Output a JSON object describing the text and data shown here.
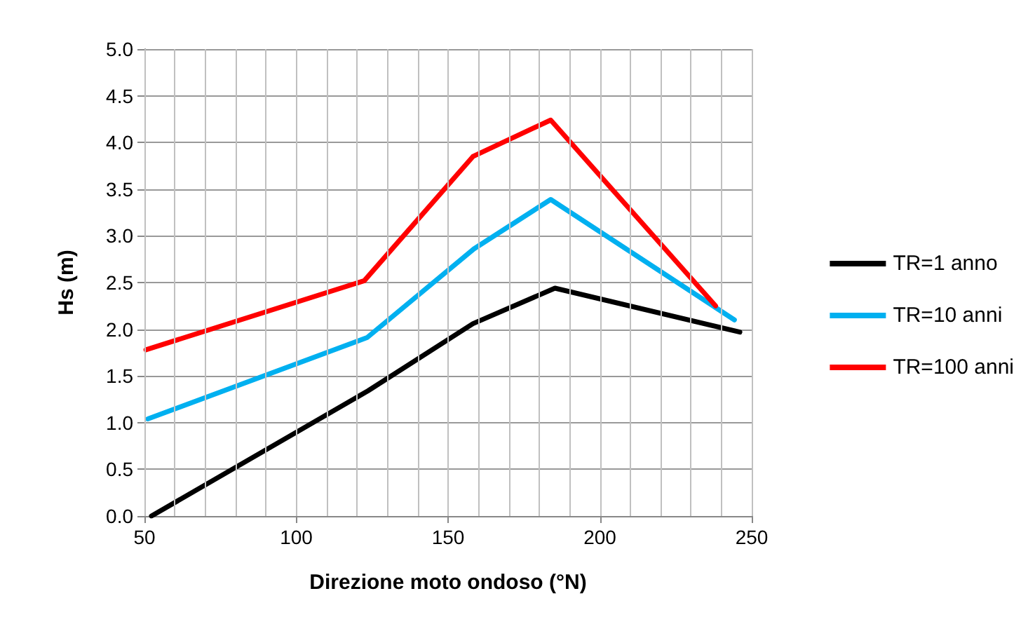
{
  "chart_data": {
    "type": "line",
    "xlabel": "Direzione moto ondoso (°N)",
    "ylabel": "Hs (m)",
    "xlim": [
      50,
      250
    ],
    "xticks": [
      50,
      100,
      150,
      200,
      250
    ],
    "ylim": [
      0,
      5
    ],
    "yticks": [
      {
        "value": 0,
        "label": "0.0"
      },
      {
        "value": 0.5,
        "label": "0.5"
      },
      {
        "value": 1,
        "label": "1.0"
      },
      {
        "value": 1.5,
        "label": "1.5"
      },
      {
        "value": 2,
        "label": "2.0"
      },
      {
        "value": 2.5,
        "label": "2.5"
      },
      {
        "value": 3,
        "label": "3.0"
      },
      {
        "value": 3.5,
        "label": "3.5"
      },
      {
        "value": 4,
        "label": "4.0"
      },
      {
        "value": 4.5,
        "label": "4.5"
      },
      {
        "value": 5,
        "label": "5.0"
      }
    ],
    "grid": true,
    "legend": "right",
    "marker": "none",
    "line_style": "solid",
    "series": [
      {
        "name": "TR=1 anno",
        "color": "#000000",
        "x": [
          52.3,
          123.6,
          158.2,
          185.2,
          246.1
        ],
        "values": [
          0.0,
          1.34,
          2.06,
          2.44,
          1.97
        ]
      },
      {
        "name": "TR=10 anni",
        "color": "#00b0f0",
        "x": [
          51.1,
          123.3,
          158.5,
          183.8,
          244.3
        ],
        "values": [
          1.04,
          1.91,
          2.86,
          3.39,
          2.1
        ]
      },
      {
        "name": "TR=100 anni",
        "color": "#ff0000",
        "x": [
          50.5,
          122.4,
          158.2,
          183.8,
          238.1
        ],
        "values": [
          1.78,
          2.52,
          3.85,
          4.24,
          2.25
        ]
      }
    ]
  }
}
